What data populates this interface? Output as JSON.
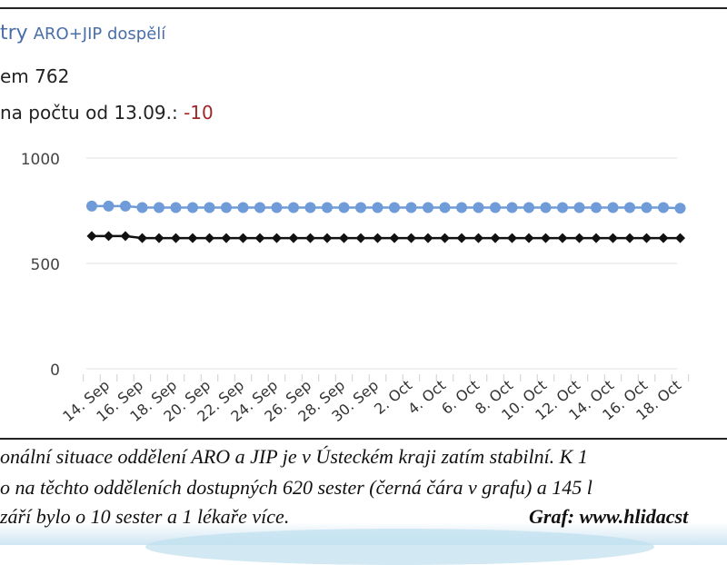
{
  "header": {
    "title": "try",
    "subtitle": "ARO+JIP dospělí",
    "total_label": "em",
    "total_value": "762",
    "change_label": "na počtu od 13.09.:",
    "change_value": "-10"
  },
  "colors": {
    "series_beds": "#6f9bd8",
    "series_nurses": "#111111",
    "grid": "#e6e6e6",
    "axis_text": "#444444"
  },
  "chart_data": {
    "type": "line",
    "title": "",
    "xlabel": "",
    "ylabel": "",
    "ylim": [
      0,
      1000
    ],
    "yticks": [
      0,
      500,
      1000
    ],
    "grid": true,
    "x": [
      "13. Sep",
      "14. Sep",
      "15. Sep",
      "16. Sep",
      "17. Sep",
      "18. Sep",
      "19. Sep",
      "20. Sep",
      "21. Sep",
      "22. Sep",
      "23. Sep",
      "24. Sep",
      "25. Sep",
      "26. Sep",
      "27. Sep",
      "28. Sep",
      "29. Sep",
      "30. Sep",
      "1. Oct",
      "2. Oct",
      "3. Oct",
      "4. Oct",
      "5. Oct",
      "6. Oct",
      "7. Oct",
      "8. Oct",
      "9. Oct",
      "10. Oct",
      "11. Oct",
      "12. Oct",
      "13. Oct",
      "14. Oct",
      "15. Oct",
      "16. Oct",
      "17. Oct",
      "18. Oct"
    ],
    "xtick_labels": [
      "14. Sep",
      "16. Sep",
      "18. Sep",
      "20. Sep",
      "22. Sep",
      "24. Sep",
      "26. Sep",
      "28. Sep",
      "30. Sep",
      "2. Oct",
      "4. Oct",
      "6. Oct",
      "8. Oct",
      "10. Oct",
      "12. Oct",
      "14. Oct",
      "16. Oct",
      "18. Oct"
    ],
    "series": [
      {
        "values": [
          772,
          772,
          772,
          765,
          765,
          765,
          765,
          765,
          765,
          765,
          765,
          765,
          765,
          765,
          765,
          765,
          765,
          765,
          765,
          765,
          765,
          765,
          765,
          765,
          765,
          765,
          765,
          765,
          765,
          765,
          765,
          765,
          765,
          765,
          765,
          762
        ],
        "marker": "circle",
        "color": "#6f9bd8"
      },
      {
        "values": [
          630,
          630,
          630,
          620,
          620,
          620,
          620,
          620,
          620,
          620,
          620,
          620,
          620,
          620,
          620,
          620,
          620,
          620,
          620,
          620,
          620,
          620,
          620,
          620,
          620,
          620,
          620,
          620,
          620,
          620,
          620,
          620,
          620,
          620,
          620,
          620
        ],
        "marker": "diamond",
        "color": "#111111"
      }
    ]
  },
  "caption": {
    "line1": "onální situace oddělení ARO a JIP je v Ústeckém kraji zatím stabilní. K 1",
    "line2": "o na těchto odděleních dostupných 620 sester (černá čára v grafu) a 145 l",
    "line3": "září bylo o 10 sester a 1 lékaře více.",
    "credit": "Graf: www.hlidacst"
  }
}
